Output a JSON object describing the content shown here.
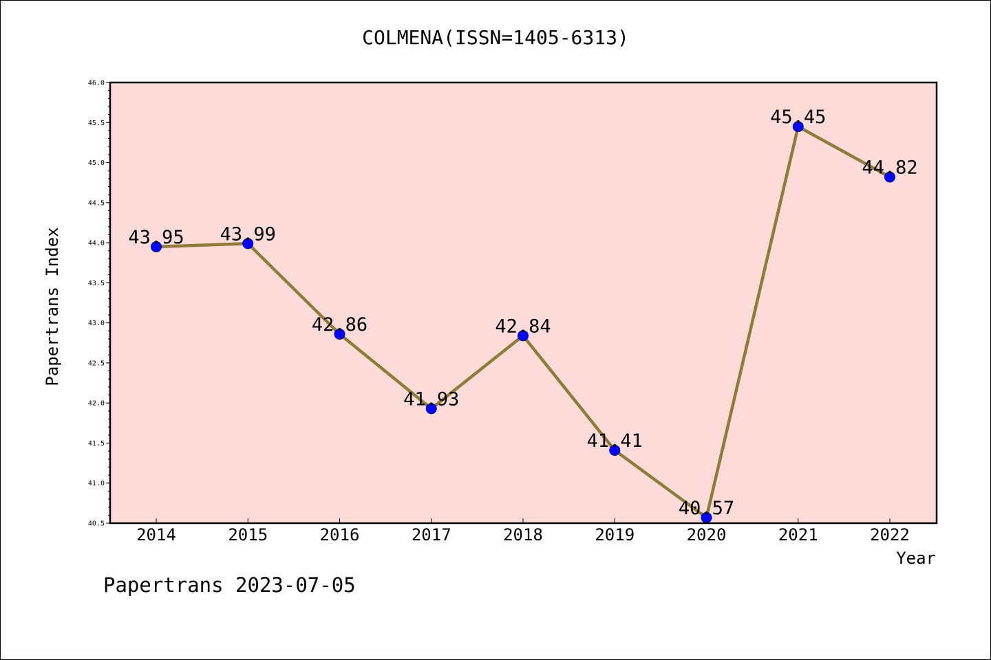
{
  "title": "COLMENA(ISSN=1405-6313)",
  "footer_text": "Papertrans 2023-07-05",
  "colors": {
    "plot_background": "#fddbd9",
    "line": "#8f7c3a",
    "marker": "#0000ff",
    "axes": "#000000"
  },
  "chart_data": {
    "type": "line",
    "title": "COLMENA(ISSN=1405-6313)",
    "xlabel": "Year",
    "ylabel": "Papertrans Index",
    "categories": [
      "2014",
      "2015",
      "2016",
      "2017",
      "2018",
      "2019",
      "2020",
      "2021",
      "2022"
    ],
    "series": [
      {
        "values": [
          43.95,
          43.99,
          42.86,
          41.93,
          42.84,
          41.41,
          40.57,
          45.45,
          44.82
        ],
        "data_labels": [
          "43.95",
          "43.99",
          "42.86",
          "41.93",
          "42.84",
          "41.41",
          "40.57",
          "45.45",
          "44.82"
        ]
      }
    ],
    "ylim": [
      40.5,
      46.0
    ],
    "y_ticks": [
      "40.5",
      "41.0",
      "41.5",
      "42.0",
      "42.5",
      "43.0",
      "43.5",
      "44.0",
      "44.5",
      "45.0",
      "45.5",
      "46.0"
    ],
    "grid": false,
    "legend": "none"
  }
}
